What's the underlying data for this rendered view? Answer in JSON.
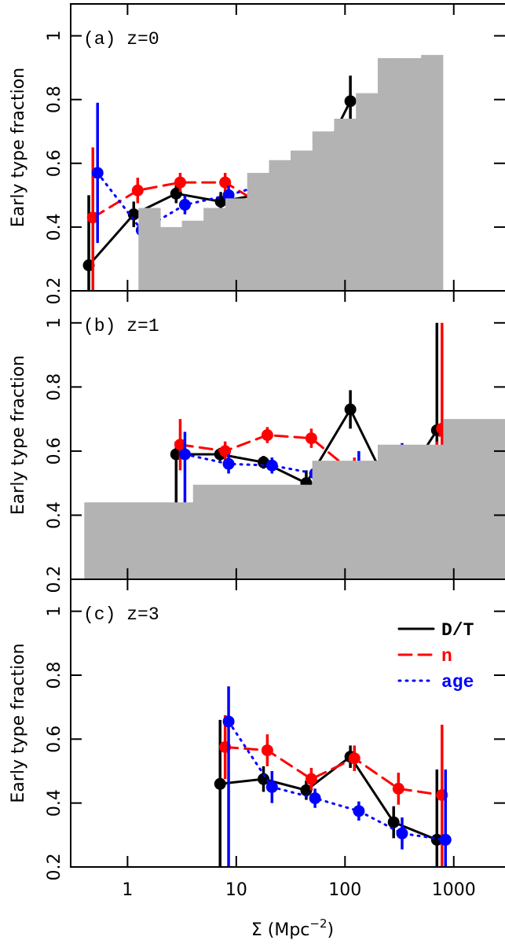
{
  "chart_data": [
    {
      "type": "line",
      "title": "(a) z=0",
      "ylabel": "Early type fraction",
      "xlim": [
        0.3,
        2960
      ],
      "ylim": [
        0.2,
        1.1
      ],
      "log_x": true,
      "xticks": [
        1,
        10,
        100,
        1000
      ],
      "xtick_labels": false,
      "yticks": [
        0.2,
        0.4,
        0.6,
        0.8,
        1
      ],
      "bars": {
        "color": "#b3b3b3",
        "bins": [
          1.26,
          2,
          3.16,
          5,
          7.94,
          12.6,
          20,
          31.6,
          50.1,
          79.4,
          126,
          200,
          316,
          501,
          794
        ],
        "values": [
          0.46,
          0.4,
          0.42,
          0.46,
          0.49,
          0.57,
          0.61,
          0.64,
          0.7,
          0.74,
          0.82,
          0.93,
          0.93,
          0.94
        ]
      },
      "series": [
        {
          "name": "D/T",
          "color": "#000000",
          "style": "solid",
          "x": [
            0.44,
            1.14,
            2.8,
            7.2,
            17.8,
            44,
            112
          ],
          "values": [
            0.28,
            0.44,
            0.505,
            0.48,
            0.505,
            0.52,
            0.795
          ],
          "err_minus": [
            0.22,
            0.04,
            0.03,
            0.03,
            0.03,
            0.04,
            0.6
          ],
          "err_plus": [
            0.22,
            0.04,
            0.03,
            0.03,
            0.03,
            0.04,
            0.08
          ]
        },
        {
          "name": "n",
          "color": "#ff0000",
          "style": "dashed",
          "x": [
            0.48,
            1.24,
            3.05,
            7.9,
            19.3,
            49,
            122
          ],
          "values": [
            0.43,
            0.515,
            0.54,
            0.54,
            0.46,
            0.385,
            0.2
          ],
          "err_minus": [
            0.23,
            0.04,
            0.03,
            0.03,
            0.04,
            0.05,
            0.04
          ],
          "err_plus": [
            0.22,
            0.04,
            0.03,
            0.03,
            0.04,
            0.05,
            0.04
          ]
        },
        {
          "name": "age",
          "color": "#0000ff",
          "style": "dotted",
          "x": [
            0.53,
            1.35,
            3.37,
            8.5,
            21.3,
            53,
            134
          ],
          "values": [
            0.57,
            0.39,
            0.47,
            0.5,
            0.54,
            0.585,
            0.69
          ],
          "err_minus": [
            0.22,
            0.05,
            0.03,
            0.03,
            0.03,
            0.04,
            0.49
          ],
          "err_plus": [
            0.22,
            0.05,
            0.03,
            0.03,
            0.03,
            0.04,
            0.09
          ]
        }
      ]
    },
    {
      "type": "line",
      "title": "(b) z=1",
      "ylabel": "Early type fraction",
      "xlim": [
        0.3,
        2960
      ],
      "ylim": [
        0.2,
        1.1
      ],
      "log_x": true,
      "xticks": [
        1,
        10,
        100,
        1000
      ],
      "xtick_labels": false,
      "yticks": [
        0.2,
        0.4,
        0.6,
        0.8,
        1
      ],
      "bars": {
        "color": "#b3b3b3",
        "bins": [
          0.4,
          4,
          50,
          200,
          800,
          3000
        ],
        "values": [
          0.44,
          0.495,
          0.57,
          0.62,
          0.7
        ]
      },
      "series": [
        {
          "name": "D/T",
          "color": "#000000",
          "style": "solid",
          "x": [
            2.8,
            7.1,
            17.8,
            44,
            112,
            280,
            700
          ],
          "values": [
            0.59,
            0.59,
            0.565,
            0.5,
            0.73,
            0.455,
            0.665
          ],
          "err_minus": [
            0.39,
            0.02,
            0.02,
            0.04,
            0.06,
            0.06,
            0.465
          ],
          "err_plus": [
            0.04,
            0.02,
            0.02,
            0.04,
            0.06,
            0.06,
            0.335
          ]
        },
        {
          "name": "n",
          "color": "#ff0000",
          "style": "dashed",
          "x": [
            3.05,
            7.9,
            19.3,
            49,
            122,
            310,
            780
          ],
          "values": [
            0.62,
            0.6,
            0.65,
            0.64,
            0.53,
            0.27,
            0.67
          ],
          "err_minus": [
            0.08,
            0.03,
            0.025,
            0.03,
            0.05,
            0.07,
            0.47
          ],
          "err_plus": [
            0.08,
            0.03,
            0.025,
            0.03,
            0.05,
            0.07,
            0.33
          ]
        },
        {
          "name": "age",
          "color": "#0000ff",
          "style": "dotted",
          "x": [
            3.37,
            8.5,
            21.3,
            53,
            134,
            335,
            840
          ],
          "values": [
            0.59,
            0.56,
            0.555,
            0.53,
            0.55,
            0.545,
            0.335
          ],
          "err_minus": [
            0.39,
            0.03,
            0.025,
            0.03,
            0.05,
            0.08,
            0.135
          ],
          "err_plus": [
            0.07,
            0.03,
            0.025,
            0.03,
            0.05,
            0.08,
            0.33
          ]
        }
      ]
    },
    {
      "type": "line",
      "title": "(c) z=3",
      "ylabel": "Early type fraction",
      "xlabel": [
        "Σ (Mpc",
        "−2",
        ")"
      ],
      "xlim": [
        0.3,
        2960
      ],
      "ylim": [
        0.2,
        1.1
      ],
      "log_x": true,
      "xticks": [
        1,
        10,
        100,
        1000
      ],
      "xtick_labels": true,
      "yticks": [
        0.2,
        0.4,
        0.6,
        0.8,
        1
      ],
      "legend": "upper right",
      "series": [
        {
          "name": "D/T",
          "color": "#000000",
          "style": "solid",
          "x": [
            7.1,
            17.8,
            44,
            112,
            280,
            700
          ],
          "values": [
            0.46,
            0.475,
            0.44,
            0.545,
            0.34,
            0.285
          ],
          "err_minus": [
            0.26,
            0.04,
            0.03,
            0.035,
            0.05,
            0.085
          ],
          "err_plus": [
            0.2,
            0.04,
            0.03,
            0.035,
            0.05,
            0.22
          ]
        },
        {
          "name": "n",
          "color": "#ff0000",
          "style": "dashed",
          "x": [
            7.9,
            19.3,
            49,
            122,
            310,
            780
          ],
          "values": [
            0.575,
            0.565,
            0.475,
            0.54,
            0.445,
            0.425
          ],
          "err_minus": [
            0.1,
            0.05,
            0.035,
            0.04,
            0.05,
            0.225
          ],
          "err_plus": [
            0.1,
            0.05,
            0.035,
            0.04,
            0.05,
            0.22
          ]
        },
        {
          "name": "age",
          "color": "#0000ff",
          "style": "dotted",
          "x": [
            8.5,
            21.3,
            53,
            134,
            335,
            840
          ],
          "values": [
            0.655,
            0.45,
            0.415,
            0.375,
            0.305,
            0.285
          ],
          "err_minus": [
            0.455,
            0.05,
            0.03,
            0.03,
            0.05,
            0.085
          ],
          "err_plus": [
            0.11,
            0.05,
            0.03,
            0.03,
            0.05,
            0.22
          ]
        }
      ]
    }
  ]
}
